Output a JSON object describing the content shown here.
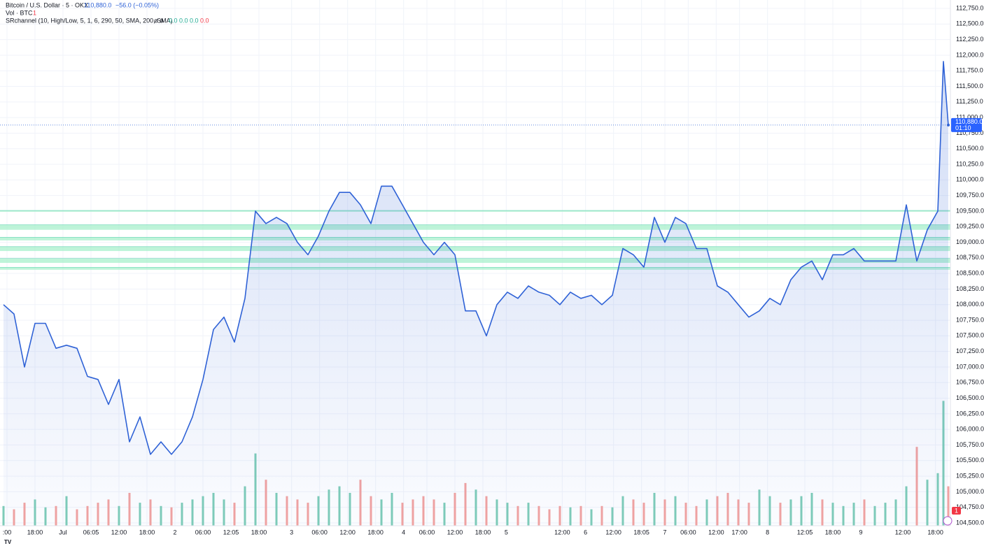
{
  "chart_data": {
    "type": "area",
    "title": "Bitcoin / U.S. Dollar · 5 · OKX",
    "change": "−56.0 (−0.05%)",
    "volume_title": "Vol · BTC",
    "volume_badge": "1",
    "indicator": "SRchannel (10, High/Low, 5, 1, 6, 290, 50, SMA, 200, SMA)",
    "indicator_marks": "ø ø",
    "indicator_values": [
      "0.0",
      "0.0",
      "0.0",
      "0.0"
    ],
    "last_price": {
      "value": 110880,
      "label": "110,880.0"
    },
    "countdown": "01:10",
    "color": "#2f62d6",
    "volume_colors": {
      "up": "#7fcdb8",
      "down": "#f3a3a0"
    },
    "sr_color": "#a8f0cc",
    "sr_levels": [
      {
        "low": 109490,
        "high": 109510
      },
      {
        "low": 109200,
        "high": 109280
      },
      {
        "low": 109030,
        "high": 109080
      },
      {
        "low": 108860,
        "high": 108930
      },
      {
        "low": 108670,
        "high": 108740
      },
      {
        "low": 108560,
        "high": 108600
      }
    ],
    "xlim": [
      -12.75,
      189.75
    ],
    "ylim": [
      104455,
      112885
    ],
    "volume_ylim": [
      0,
      800
    ],
    "x": [
      -12.75,
      -10.5,
      -8.25,
      -6,
      -3.75,
      -1.5,
      0.75,
      3,
      5.25,
      7.5,
      9.75,
      12,
      14.25,
      16.5,
      18.75,
      21,
      23.25,
      25.5,
      27.75,
      30,
      32.25,
      34.5,
      36.75,
      39,
      41.25,
      43.5,
      45.75,
      48,
      50.25,
      52.5,
      54.75,
      57,
      59.25,
      61.5,
      63.75,
      66,
      68.25,
      70.5,
      72.75,
      75,
      77.25,
      79.5,
      81.75,
      84,
      86.25,
      88.5,
      90.75,
      93,
      95.25,
      97.5,
      99.75,
      102,
      104.25,
      106.5,
      108.75,
      111,
      113.25,
      115.5,
      117.75,
      120,
      122.25,
      124.5,
      126.75,
      129,
      131.25,
      133.5,
      135.75,
      138,
      140.25,
      142.5,
      144.75,
      147,
      149.25,
      151.5,
      153.75,
      156,
      158.25,
      160.5,
      162.75,
      165,
      167.25,
      169.5,
      171.75,
      174,
      176.25,
      178.5,
      180.75,
      183,
      185.25,
      187.5,
      188.7,
      189.75
    ],
    "series": [
      {
        "name": "Price",
        "values": [
          108000,
          107850,
          107000,
          107700,
          107700,
          107300,
          107350,
          107300,
          106850,
          106800,
          106400,
          106800,
          105800,
          106200,
          105600,
          105800,
          105600,
          105800,
          106200,
          106800,
          107600,
          107800,
          107400,
          108100,
          109500,
          109300,
          109400,
          109300,
          109000,
          108800,
          109100,
          109500,
          109800,
          109800,
          109600,
          109300,
          109900,
          109900,
          109600,
          109300,
          109000,
          108800,
          109000,
          108800,
          107900,
          107900,
          107500,
          108000,
          108200,
          108100,
          108300,
          108200,
          108150,
          108000,
          108200,
          108100,
          108150,
          108000,
          108150,
          108900,
          108800,
          108600,
          109400,
          109000,
          109400,
          109300,
          108900,
          108900,
          108300,
          108200,
          108000,
          107800,
          107900,
          108100,
          108000,
          108400,
          108600,
          108700,
          108400,
          108800,
          108800,
          108900,
          108700,
          108700,
          108700,
          108700,
          109600,
          108700,
          109200,
          109500,
          111900,
          110880
        ]
      },
      {
        "name": "Vol",
        "values": [
          30,
          25,
          35,
          40,
          28,
          30,
          45,
          25,
          30,
          35,
          40,
          30,
          50,
          35,
          40,
          30,
          28,
          35,
          40,
          45,
          50,
          40,
          35,
          60,
          110,
          70,
          50,
          45,
          40,
          35,
          45,
          55,
          60,
          50,
          70,
          45,
          40,
          50,
          35,
          40,
          45,
          40,
          35,
          50,
          65,
          55,
          45,
          40,
          35,
          30,
          35,
          30,
          25,
          30,
          28,
          30,
          25,
          30,
          28,
          45,
          40,
          35,
          50,
          40,
          45,
          35,
          30,
          40,
          45,
          50,
          40,
          35,
          55,
          45,
          35,
          40,
          45,
          50,
          40,
          35,
          30,
          35,
          40,
          30,
          35,
          40,
          60,
          120,
          70,
          80,
          190,
          60
        ]
      }
    ],
    "xticks": [
      {
        "value": -12,
        "label": ":00"
      },
      {
        "value": -6,
        "label": "18:00"
      },
      {
        "value": 0,
        "label": "Jul"
      },
      {
        "value": 6,
        "label": "06:05"
      },
      {
        "value": 12,
        "label": "12:00"
      },
      {
        "value": 18,
        "label": "18:00"
      },
      {
        "value": 24,
        "label": "2"
      },
      {
        "value": 30,
        "label": "06:00"
      },
      {
        "value": 36,
        "label": "12:05"
      },
      {
        "value": 42,
        "label": "18:00"
      },
      {
        "value": 49,
        "label": "3"
      },
      {
        "value": 55,
        "label": "06:00"
      },
      {
        "value": 61,
        "label": "12:00"
      },
      {
        "value": 67,
        "label": "18:00"
      },
      {
        "value": 73,
        "label": "4"
      },
      {
        "value": 78,
        "label": "06:00"
      },
      {
        "value": 84,
        "label": "12:00"
      },
      {
        "value": 90,
        "label": "18:00"
      },
      {
        "value": 95,
        "label": "5"
      },
      {
        "value": 107,
        "label": "12:00"
      },
      {
        "value": 112,
        "label": "6"
      },
      {
        "value": 118,
        "label": "12:00"
      },
      {
        "value": 124,
        "label": "18:05"
      },
      {
        "value": 129,
        "label": "7"
      },
      {
        "value": 134,
        "label": "06:00"
      },
      {
        "value": 140,
        "label": "12:00"
      },
      {
        "value": 145,
        "label": "17:00"
      },
      {
        "value": 151,
        "label": "8"
      },
      {
        "value": 159,
        "label": "12:05"
      },
      {
        "value": 165,
        "label": "18:00"
      },
      {
        "value": 171,
        "label": "9"
      },
      {
        "value": 180,
        "label": "12:00"
      },
      {
        "value": 187,
        "label": "18:00"
      }
    ],
    "yticks": [
      {
        "value": 104500,
        "label": "104,500.0"
      },
      {
        "value": 104750,
        "label": "104,750.0"
      },
      {
        "value": 105000,
        "label": "105,000.0"
      },
      {
        "value": 105250,
        "label": "105,250.0"
      },
      {
        "value": 105500,
        "label": "105,500.0"
      },
      {
        "value": 105750,
        "label": "105,750.0"
      },
      {
        "value": 106000,
        "label": "106,000.0"
      },
      {
        "value": 106250,
        "label": "106,250.0"
      },
      {
        "value": 106500,
        "label": "106,500.0"
      },
      {
        "value": 106750,
        "label": "106,750.0"
      },
      {
        "value": 107000,
        "label": "107,000.0"
      },
      {
        "value": 107250,
        "label": "107,250.0"
      },
      {
        "value": 107500,
        "label": "107,500.0"
      },
      {
        "value": 107750,
        "label": "107,750.0"
      },
      {
        "value": 108000,
        "label": "108,000.0"
      },
      {
        "value": 108250,
        "label": "108,250.0"
      },
      {
        "value": 108500,
        "label": "108,500.0"
      },
      {
        "value": 108750,
        "label": "108,750.0"
      },
      {
        "value": 109000,
        "label": "109,000.0"
      },
      {
        "value": 109250,
        "label": "109,250.0"
      },
      {
        "value": 109500,
        "label": "109,500.0"
      },
      {
        "value": 109750,
        "label": "109,750.0"
      },
      {
        "value": 110000,
        "label": "110,000.0"
      },
      {
        "value": 110250,
        "label": "110,250.0"
      },
      {
        "value": 110500,
        "label": "110,500.0"
      },
      {
        "value": 110750,
        "label": "110,750.0"
      },
      {
        "value": 111000,
        "label": "111,000.0"
      },
      {
        "value": 111250,
        "label": "111,250.0"
      },
      {
        "value": 111500,
        "label": "111,500.0"
      },
      {
        "value": 111750,
        "label": "111,750.0"
      },
      {
        "value": 112000,
        "label": "112,000.0"
      },
      {
        "value": 112250,
        "label": "112,250.0"
      },
      {
        "value": 112500,
        "label": "112,500.0"
      },
      {
        "value": 112750,
        "label": "112,750.0"
      }
    ],
    "grid": true
  }
}
